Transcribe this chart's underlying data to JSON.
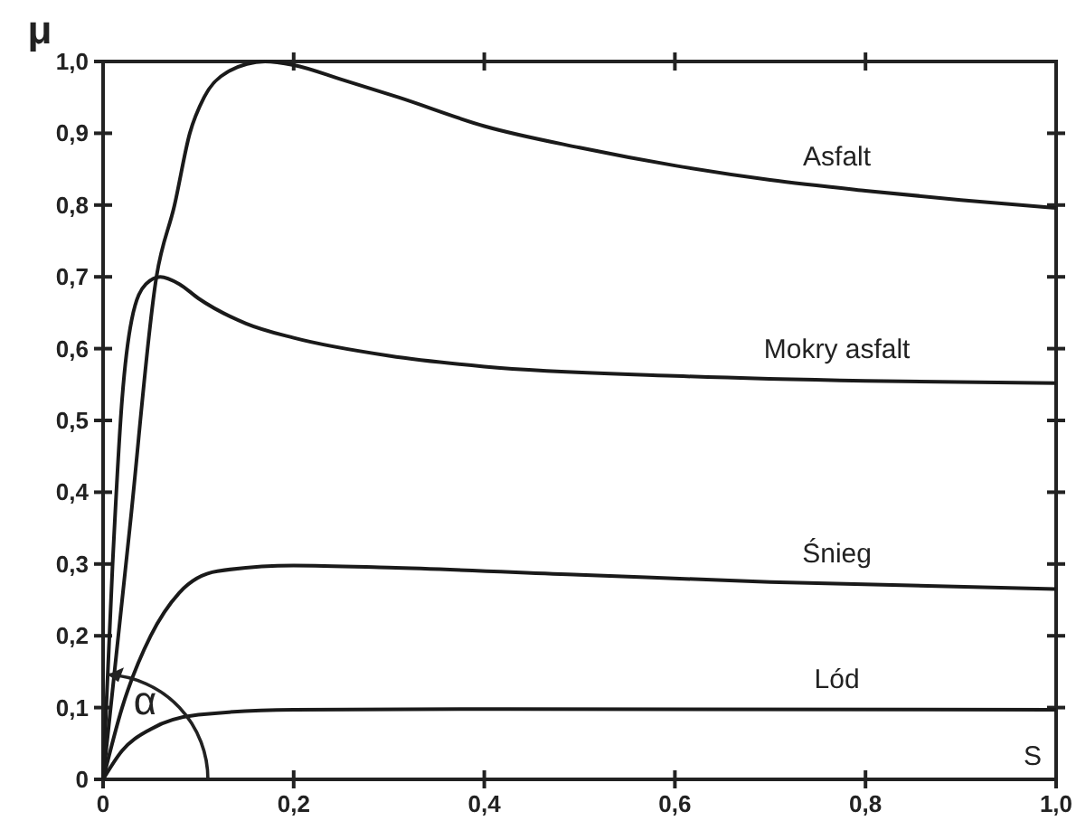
{
  "chart_data": {
    "type": "line",
    "xlabel": "S",
    "ylabel": "μ",
    "xlim": [
      0,
      1
    ],
    "ylim": [
      0,
      1
    ],
    "xticks": [
      0,
      {
        "value": 0.2,
        "label": "0,2"
      },
      {
        "value": 0.4,
        "label": "0,4"
      },
      {
        "value": 0.6,
        "label": "0,6"
      },
      {
        "value": 0.8,
        "label": "0,8"
      },
      {
        "value": 1,
        "label": "1,0"
      }
    ],
    "yticks": [
      0,
      {
        "value": 0.1,
        "label": "0,1"
      },
      {
        "value": 0.2,
        "label": "0,2"
      },
      {
        "value": 0.3,
        "label": "0,3"
      },
      {
        "value": 0.4,
        "label": "0,4"
      },
      {
        "value": 0.5,
        "label": "0,5"
      },
      {
        "value": 0.6,
        "label": "0,6"
      },
      {
        "value": 0.7,
        "label": "0,7"
      },
      {
        "value": 0.8,
        "label": "0,8"
      },
      {
        "value": 0.9,
        "label": "0,9"
      },
      {
        "value": 1,
        "label": "1,0"
      }
    ],
    "series": [
      {
        "name": "Asfalt",
        "color": "#1a1a1a",
        "x": [
          0,
          0.028,
          0.056,
          0.075,
          0.091,
          0.106,
          0.13,
          0.17,
          0.2,
          0.25,
          0.31,
          0.4,
          0.5,
          0.6,
          0.7,
          0.8,
          0.9,
          1.0
        ],
        "values": [
          0,
          0.35,
          0.7,
          0.8,
          0.9,
          0.95,
          0.985,
          1.0,
          0.995,
          0.975,
          0.95,
          0.91,
          0.88,
          0.855,
          0.835,
          0.82,
          0.807,
          0.796
        ]
      },
      {
        "name": "Mokry asfalt",
        "color": "#1a1a1a",
        "x": [
          0,
          0.01,
          0.02,
          0.03,
          0.045,
          0.06,
          0.08,
          0.1,
          0.15,
          0.2,
          0.3,
          0.4,
          0.6,
          0.8,
          1.0
        ],
        "values": [
          0,
          0.3,
          0.53,
          0.64,
          0.69,
          0.7,
          0.69,
          0.67,
          0.635,
          0.615,
          0.59,
          0.575,
          0.562,
          0.555,
          0.552
        ]
      },
      {
        "name": "Śnieg",
        "color": "#1a1a1a",
        "x": [
          0,
          0.02,
          0.05,
          0.08,
          0.12,
          0.2,
          0.3,
          0.5,
          0.7,
          1.0
        ],
        "values": [
          0,
          0.1,
          0.2,
          0.26,
          0.29,
          0.298,
          0.295,
          0.285,
          0.275,
          0.265
        ]
      },
      {
        "name": "Lód",
        "color": "#1a1a1a",
        "x": [
          0,
          0.02,
          0.05,
          0.1,
          0.2,
          0.4,
          1.0
        ],
        "values": [
          0,
          0.04,
          0.07,
          0.09,
          0.097,
          0.098,
          0.097
        ]
      }
    ],
    "annotations": [
      "α"
    ]
  }
}
